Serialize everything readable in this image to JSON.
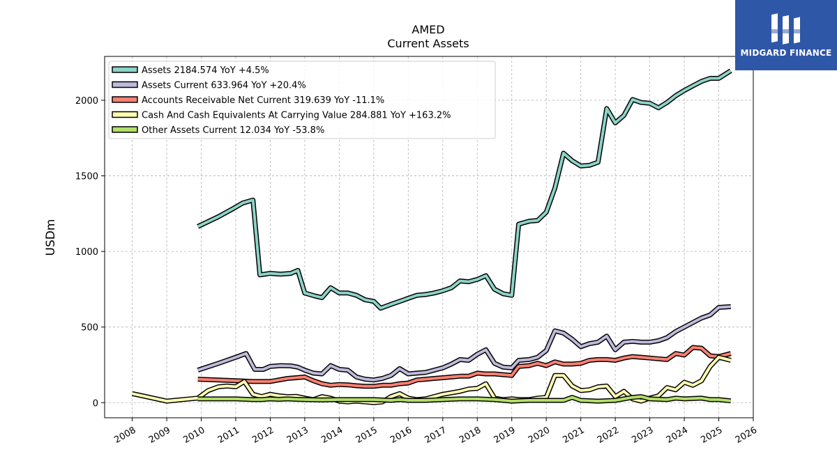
{
  "logo": {
    "text": "MIDGARD FINANCE",
    "bg": "#2f57a8"
  },
  "chart_data": {
    "type": "line",
    "title": "AMED",
    "subtitle": "Current  Assets",
    "ylabel": "USDm",
    "xlim": [
      2007.2,
      2026.0
    ],
    "ylim": [
      -100,
      2290
    ],
    "x_ticks": [
      2008,
      2009,
      2010,
      2011,
      2012,
      2013,
      2014,
      2015,
      2016,
      2017,
      2018,
      2019,
      2020,
      2021,
      2022,
      2023,
      2024,
      2025,
      2026
    ],
    "y_ticks": [
      0,
      500,
      1000,
      1500,
      2000
    ],
    "grid": true,
    "legend_position": "upper-left",
    "series": [
      {
        "name": "Assets  2184.574 YoY +4.5%",
        "color": "#8dd3c7",
        "points": [
          [
            2009.9,
            1165
          ],
          [
            2010.5,
            1230
          ],
          [
            2010.9,
            1280
          ],
          [
            2011.2,
            1320
          ],
          [
            2011.5,
            1340
          ],
          [
            2011.7,
            845
          ],
          [
            2012.0,
            855
          ],
          [
            2012.3,
            850
          ],
          [
            2012.6,
            855
          ],
          [
            2012.8,
            875
          ],
          [
            2013.0,
            725
          ],
          [
            2013.3,
            705
          ],
          [
            2013.5,
            695
          ],
          [
            2013.75,
            760
          ],
          [
            2014.0,
            725
          ],
          [
            2014.25,
            725
          ],
          [
            2014.5,
            710
          ],
          [
            2014.75,
            680
          ],
          [
            2015.0,
            670
          ],
          [
            2015.2,
            625
          ],
          [
            2015.5,
            650
          ],
          [
            2015.75,
            670
          ],
          [
            2016.0,
            690
          ],
          [
            2016.25,
            710
          ],
          [
            2016.5,
            715
          ],
          [
            2016.75,
            725
          ],
          [
            2017.0,
            740
          ],
          [
            2017.25,
            760
          ],
          [
            2017.5,
            805
          ],
          [
            2017.75,
            800
          ],
          [
            2018.0,
            815
          ],
          [
            2018.25,
            840
          ],
          [
            2018.5,
            750
          ],
          [
            2018.75,
            720
          ],
          [
            2019.0,
            710
          ],
          [
            2019.2,
            1180
          ],
          [
            2019.5,
            1200
          ],
          [
            2019.75,
            1205
          ],
          [
            2020.0,
            1260
          ],
          [
            2020.25,
            1420
          ],
          [
            2020.5,
            1650
          ],
          [
            2020.75,
            1600
          ],
          [
            2021.0,
            1565
          ],
          [
            2021.25,
            1570
          ],
          [
            2021.5,
            1590
          ],
          [
            2021.75,
            1945
          ],
          [
            2022.0,
            1850
          ],
          [
            2022.25,
            1900
          ],
          [
            2022.5,
            2005
          ],
          [
            2022.75,
            1985
          ],
          [
            2023.0,
            1980
          ],
          [
            2023.25,
            1950
          ],
          [
            2023.5,
            1985
          ],
          [
            2023.75,
            2030
          ],
          [
            2024.0,
            2065
          ],
          [
            2024.25,
            2095
          ],
          [
            2024.5,
            2125
          ],
          [
            2024.75,
            2145
          ],
          [
            2025.0,
            2145
          ],
          [
            2025.35,
            2195
          ]
        ]
      },
      {
        "name": "Assets Current  633.964 YoY +20.4%",
        "color": "#bebada",
        "points": [
          [
            2009.9,
            215
          ],
          [
            2010.5,
            260
          ],
          [
            2011.0,
            300
          ],
          [
            2011.3,
            325
          ],
          [
            2011.55,
            220
          ],
          [
            2011.8,
            220
          ],
          [
            2012.0,
            240
          ],
          [
            2012.3,
            245
          ],
          [
            2012.6,
            243
          ],
          [
            2012.8,
            235
          ],
          [
            2013.0,
            215
          ],
          [
            2013.25,
            195
          ],
          [
            2013.5,
            190
          ],
          [
            2013.75,
            245
          ],
          [
            2014.0,
            220
          ],
          [
            2014.25,
            215
          ],
          [
            2014.5,
            170
          ],
          [
            2014.75,
            155
          ],
          [
            2015.0,
            150
          ],
          [
            2015.25,
            160
          ],
          [
            2015.5,
            180
          ],
          [
            2015.75,
            225
          ],
          [
            2016.0,
            190
          ],
          [
            2016.25,
            195
          ],
          [
            2016.5,
            200
          ],
          [
            2016.75,
            215
          ],
          [
            2017.0,
            230
          ],
          [
            2017.25,
            255
          ],
          [
            2017.5,
            285
          ],
          [
            2017.75,
            280
          ],
          [
            2018.0,
            320
          ],
          [
            2018.25,
            350
          ],
          [
            2018.5,
            260
          ],
          [
            2018.75,
            235
          ],
          [
            2019.0,
            230
          ],
          [
            2019.2,
            280
          ],
          [
            2019.5,
            285
          ],
          [
            2019.75,
            300
          ],
          [
            2020.0,
            345
          ],
          [
            2020.25,
            475
          ],
          [
            2020.5,
            460
          ],
          [
            2020.75,
            420
          ],
          [
            2021.0,
            370
          ],
          [
            2021.25,
            390
          ],
          [
            2021.5,
            400
          ],
          [
            2021.75,
            440
          ],
          [
            2022.0,
            350
          ],
          [
            2022.25,
            400
          ],
          [
            2022.5,
            405
          ],
          [
            2022.75,
            400
          ],
          [
            2023.0,
            400
          ],
          [
            2023.25,
            410
          ],
          [
            2023.5,
            430
          ],
          [
            2023.75,
            470
          ],
          [
            2024.0,
            500
          ],
          [
            2024.25,
            530
          ],
          [
            2024.5,
            560
          ],
          [
            2024.75,
            580
          ],
          [
            2025.0,
            630
          ],
          [
            2025.35,
            635
          ]
        ]
      },
      {
        "name": "Accounts Receivable Net Current  319.639 YoY -11.1%",
        "color": "#fb8072",
        "points": [
          [
            2009.9,
            155
          ],
          [
            2010.5,
            150
          ],
          [
            2011.0,
            145
          ],
          [
            2011.5,
            140
          ],
          [
            2012.0,
            140
          ],
          [
            2012.25,
            150
          ],
          [
            2012.5,
            160
          ],
          [
            2012.75,
            165
          ],
          [
            2013.0,
            170
          ],
          [
            2013.25,
            145
          ],
          [
            2013.5,
            125
          ],
          [
            2013.75,
            115
          ],
          [
            2014.0,
            120
          ],
          [
            2014.25,
            118
          ],
          [
            2014.5,
            112
          ],
          [
            2014.75,
            108
          ],
          [
            2015.0,
            108
          ],
          [
            2015.25,
            115
          ],
          [
            2015.5,
            115
          ],
          [
            2015.75,
            125
          ],
          [
            2016.0,
            130
          ],
          [
            2016.25,
            150
          ],
          [
            2016.5,
            155
          ],
          [
            2016.75,
            160
          ],
          [
            2017.0,
            165
          ],
          [
            2017.25,
            170
          ],
          [
            2017.5,
            175
          ],
          [
            2017.75,
            175
          ],
          [
            2018.0,
            195
          ],
          [
            2018.25,
            190
          ],
          [
            2018.5,
            190
          ],
          [
            2018.75,
            185
          ],
          [
            2019.0,
            180
          ],
          [
            2019.2,
            240
          ],
          [
            2019.5,
            245
          ],
          [
            2019.75,
            260
          ],
          [
            2020.0,
            245
          ],
          [
            2020.25,
            270
          ],
          [
            2020.5,
            255
          ],
          [
            2020.75,
            255
          ],
          [
            2021.0,
            260
          ],
          [
            2021.25,
            280
          ],
          [
            2021.5,
            285
          ],
          [
            2021.75,
            285
          ],
          [
            2022.0,
            280
          ],
          [
            2022.25,
            295
          ],
          [
            2022.5,
            305
          ],
          [
            2022.75,
            300
          ],
          [
            2023.0,
            295
          ],
          [
            2023.25,
            290
          ],
          [
            2023.5,
            285
          ],
          [
            2023.75,
            325
          ],
          [
            2024.0,
            315
          ],
          [
            2024.25,
            365
          ],
          [
            2024.5,
            360
          ],
          [
            2024.75,
            310
          ],
          [
            2025.0,
            305
          ],
          [
            2025.35,
            325
          ]
        ]
      },
      {
        "name": "Cash And Cash Equivalents At Carrying Value  284.881 YoY +163.2%",
        "color": "#ffffb3",
        "points": [
          [
            2008.0,
            60
          ],
          [
            2009.0,
            10
          ],
          [
            2009.9,
            30
          ],
          [
            2010.2,
            80
          ],
          [
            2010.5,
            105
          ],
          [
            2010.75,
            110
          ],
          [
            2011.0,
            105
          ],
          [
            2011.25,
            140
          ],
          [
            2011.5,
            55
          ],
          [
            2011.75,
            40
          ],
          [
            2012.0,
            55
          ],
          [
            2012.25,
            45
          ],
          [
            2012.5,
            40
          ],
          [
            2012.75,
            42
          ],
          [
            2013.0,
            30
          ],
          [
            2013.25,
            20
          ],
          [
            2013.5,
            40
          ],
          [
            2013.75,
            30
          ],
          [
            2014.0,
            10
          ],
          [
            2014.25,
            5
          ],
          [
            2014.5,
            10
          ],
          [
            2014.75,
            5
          ],
          [
            2015.0,
            0
          ],
          [
            2015.25,
            5
          ],
          [
            2015.5,
            40
          ],
          [
            2015.75,
            60
          ],
          [
            2016.0,
            30
          ],
          [
            2016.25,
            20
          ],
          [
            2016.5,
            25
          ],
          [
            2016.75,
            40
          ],
          [
            2017.0,
            55
          ],
          [
            2017.25,
            65
          ],
          [
            2017.5,
            75
          ],
          [
            2017.75,
            90
          ],
          [
            2018.0,
            95
          ],
          [
            2018.25,
            125
          ],
          [
            2018.5,
            30
          ],
          [
            2018.75,
            20
          ],
          [
            2019.0,
            25
          ],
          [
            2019.25,
            20
          ],
          [
            2019.5,
            20
          ],
          [
            2019.75,
            30
          ],
          [
            2020.0,
            35
          ],
          [
            2020.25,
            180
          ],
          [
            2020.5,
            180
          ],
          [
            2020.75,
            110
          ],
          [
            2021.0,
            80
          ],
          [
            2021.25,
            85
          ],
          [
            2021.5,
            105
          ],
          [
            2021.75,
            110
          ],
          [
            2022.0,
            40
          ],
          [
            2022.25,
            75
          ],
          [
            2022.5,
            25
          ],
          [
            2022.75,
            10
          ],
          [
            2023.0,
            30
          ],
          [
            2023.25,
            45
          ],
          [
            2023.5,
            100
          ],
          [
            2023.75,
            85
          ],
          [
            2024.0,
            135
          ],
          [
            2024.25,
            115
          ],
          [
            2024.5,
            145
          ],
          [
            2024.75,
            240
          ],
          [
            2025.0,
            300
          ],
          [
            2025.35,
            280
          ]
        ]
      },
      {
        "name": "Other Assets Current  12.034 YoY -53.8%",
        "color": "#b3de69",
        "points": [
          [
            2009.9,
            25
          ],
          [
            2010.5,
            25
          ],
          [
            2011.0,
            25
          ],
          [
            2011.5,
            20
          ],
          [
            2011.75,
            20
          ],
          [
            2012.0,
            25
          ],
          [
            2012.25,
            22
          ],
          [
            2012.5,
            25
          ],
          [
            2012.75,
            22
          ],
          [
            2013.0,
            20
          ],
          [
            2013.5,
            18
          ],
          [
            2014.0,
            20
          ],
          [
            2014.5,
            20
          ],
          [
            2015.0,
            20
          ],
          [
            2015.5,
            15
          ],
          [
            2015.75,
            20
          ],
          [
            2016.0,
            15
          ],
          [
            2016.5,
            15
          ],
          [
            2017.0,
            20
          ],
          [
            2017.5,
            25
          ],
          [
            2018.0,
            25
          ],
          [
            2018.5,
            20
          ],
          [
            2019.0,
            10
          ],
          [
            2019.5,
            15
          ],
          [
            2020.0,
            15
          ],
          [
            2020.5,
            15
          ],
          [
            2020.75,
            35
          ],
          [
            2021.0,
            15
          ],
          [
            2021.5,
            10
          ],
          [
            2022.0,
            15
          ],
          [
            2022.5,
            35
          ],
          [
            2022.75,
            40
          ],
          [
            2023.0,
            25
          ],
          [
            2023.5,
            20
          ],
          [
            2023.75,
            30
          ],
          [
            2024.0,
            25
          ],
          [
            2024.5,
            30
          ],
          [
            2024.75,
            20
          ],
          [
            2025.0,
            20
          ],
          [
            2025.35,
            12
          ]
        ]
      }
    ]
  }
}
